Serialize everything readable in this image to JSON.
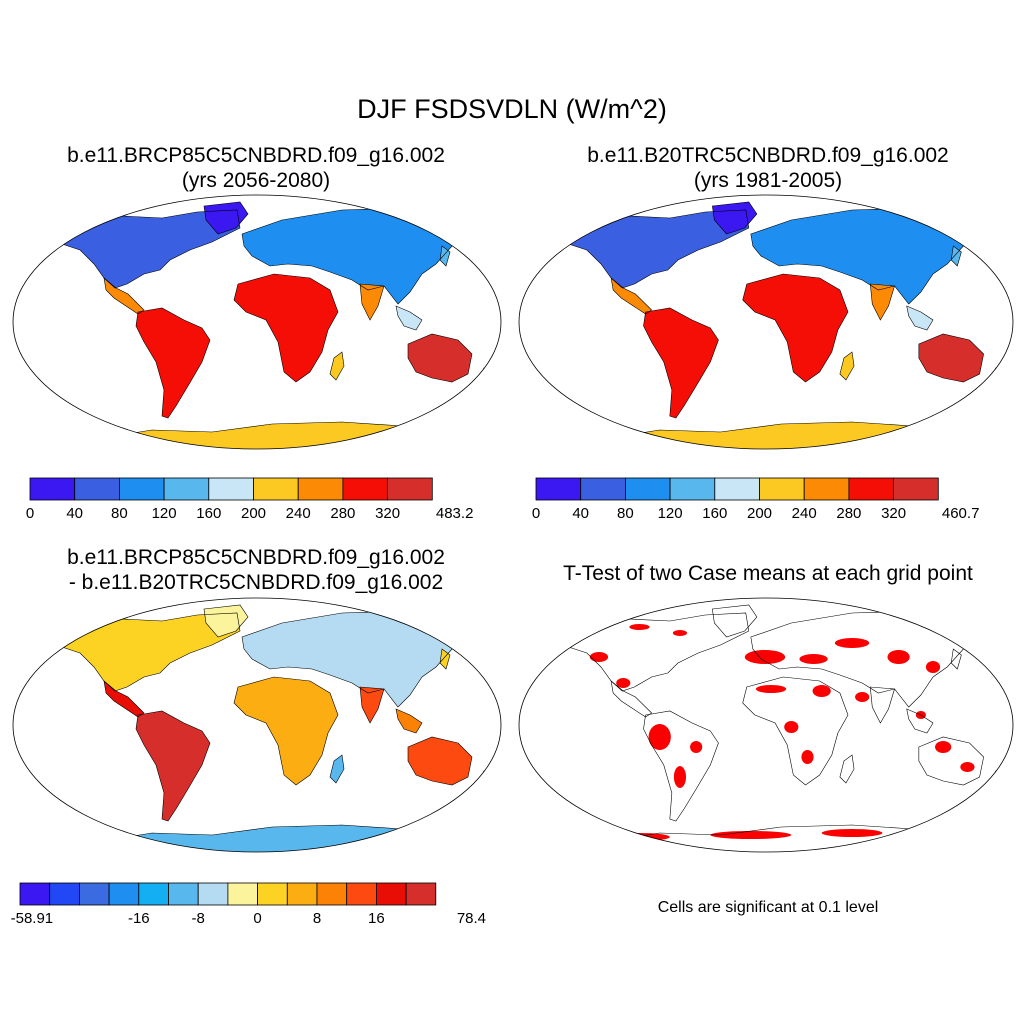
{
  "main_title": "DJF FSDSVDLN (W/m^2)",
  "colors": {
    "levels_abs": [
      "#3b17f2",
      "#3a5fe0",
      "#1e8ff0",
      "#58b8ee",
      "#c9e6f6",
      "#fcc923",
      "#fc8a05",
      "#f40e05",
      "#d52e2b"
    ],
    "levels_diff": [
      "#3b17f2",
      "#2247f5",
      "#3a6be0",
      "#1e8ff0",
      "#14aef2",
      "#58b8ee",
      "#b5dbf3",
      "#fcf49c",
      "#fcd223",
      "#fcad12",
      "#fc8205",
      "#fc4a10",
      "#e80e05",
      "#d52e2b"
    ],
    "significant": "#fa0000",
    "land_outline": "#000000"
  },
  "panels": [
    {
      "title_line1": "b.e11.BRCP85C5CNBDRD.f09_g16.002",
      "title_line2": "(yrs 2056-2080)",
      "colorbar_labels": [
        "0",
        "40",
        "80",
        "120",
        "160",
        "200",
        "240",
        "280",
        "320",
        "483.2"
      ]
    },
    {
      "title_line1": "b.e11.B20TRC5CNBDRD.f09_g16.002",
      "title_line2": "(yrs 1981-2005)",
      "colorbar_labels": [
        "0",
        "40",
        "80",
        "120",
        "160",
        "200",
        "240",
        "280",
        "320",
        "460.7"
      ]
    },
    {
      "title_line1": "b.e11.BRCP85C5CNBDRD.f09_g16.002",
      "title_line2": "- b.e11.B20TRC5CNBDRD.f09_g16.002",
      "colorbar_labels": [
        "-58.91",
        "-16",
        "-8",
        "0",
        "8",
        "16",
        "78.4"
      ]
    },
    {
      "title_line1": "T-Test of two Case means at each grid point",
      "note": "Cells are significant at 0.1 level"
    }
  ]
}
